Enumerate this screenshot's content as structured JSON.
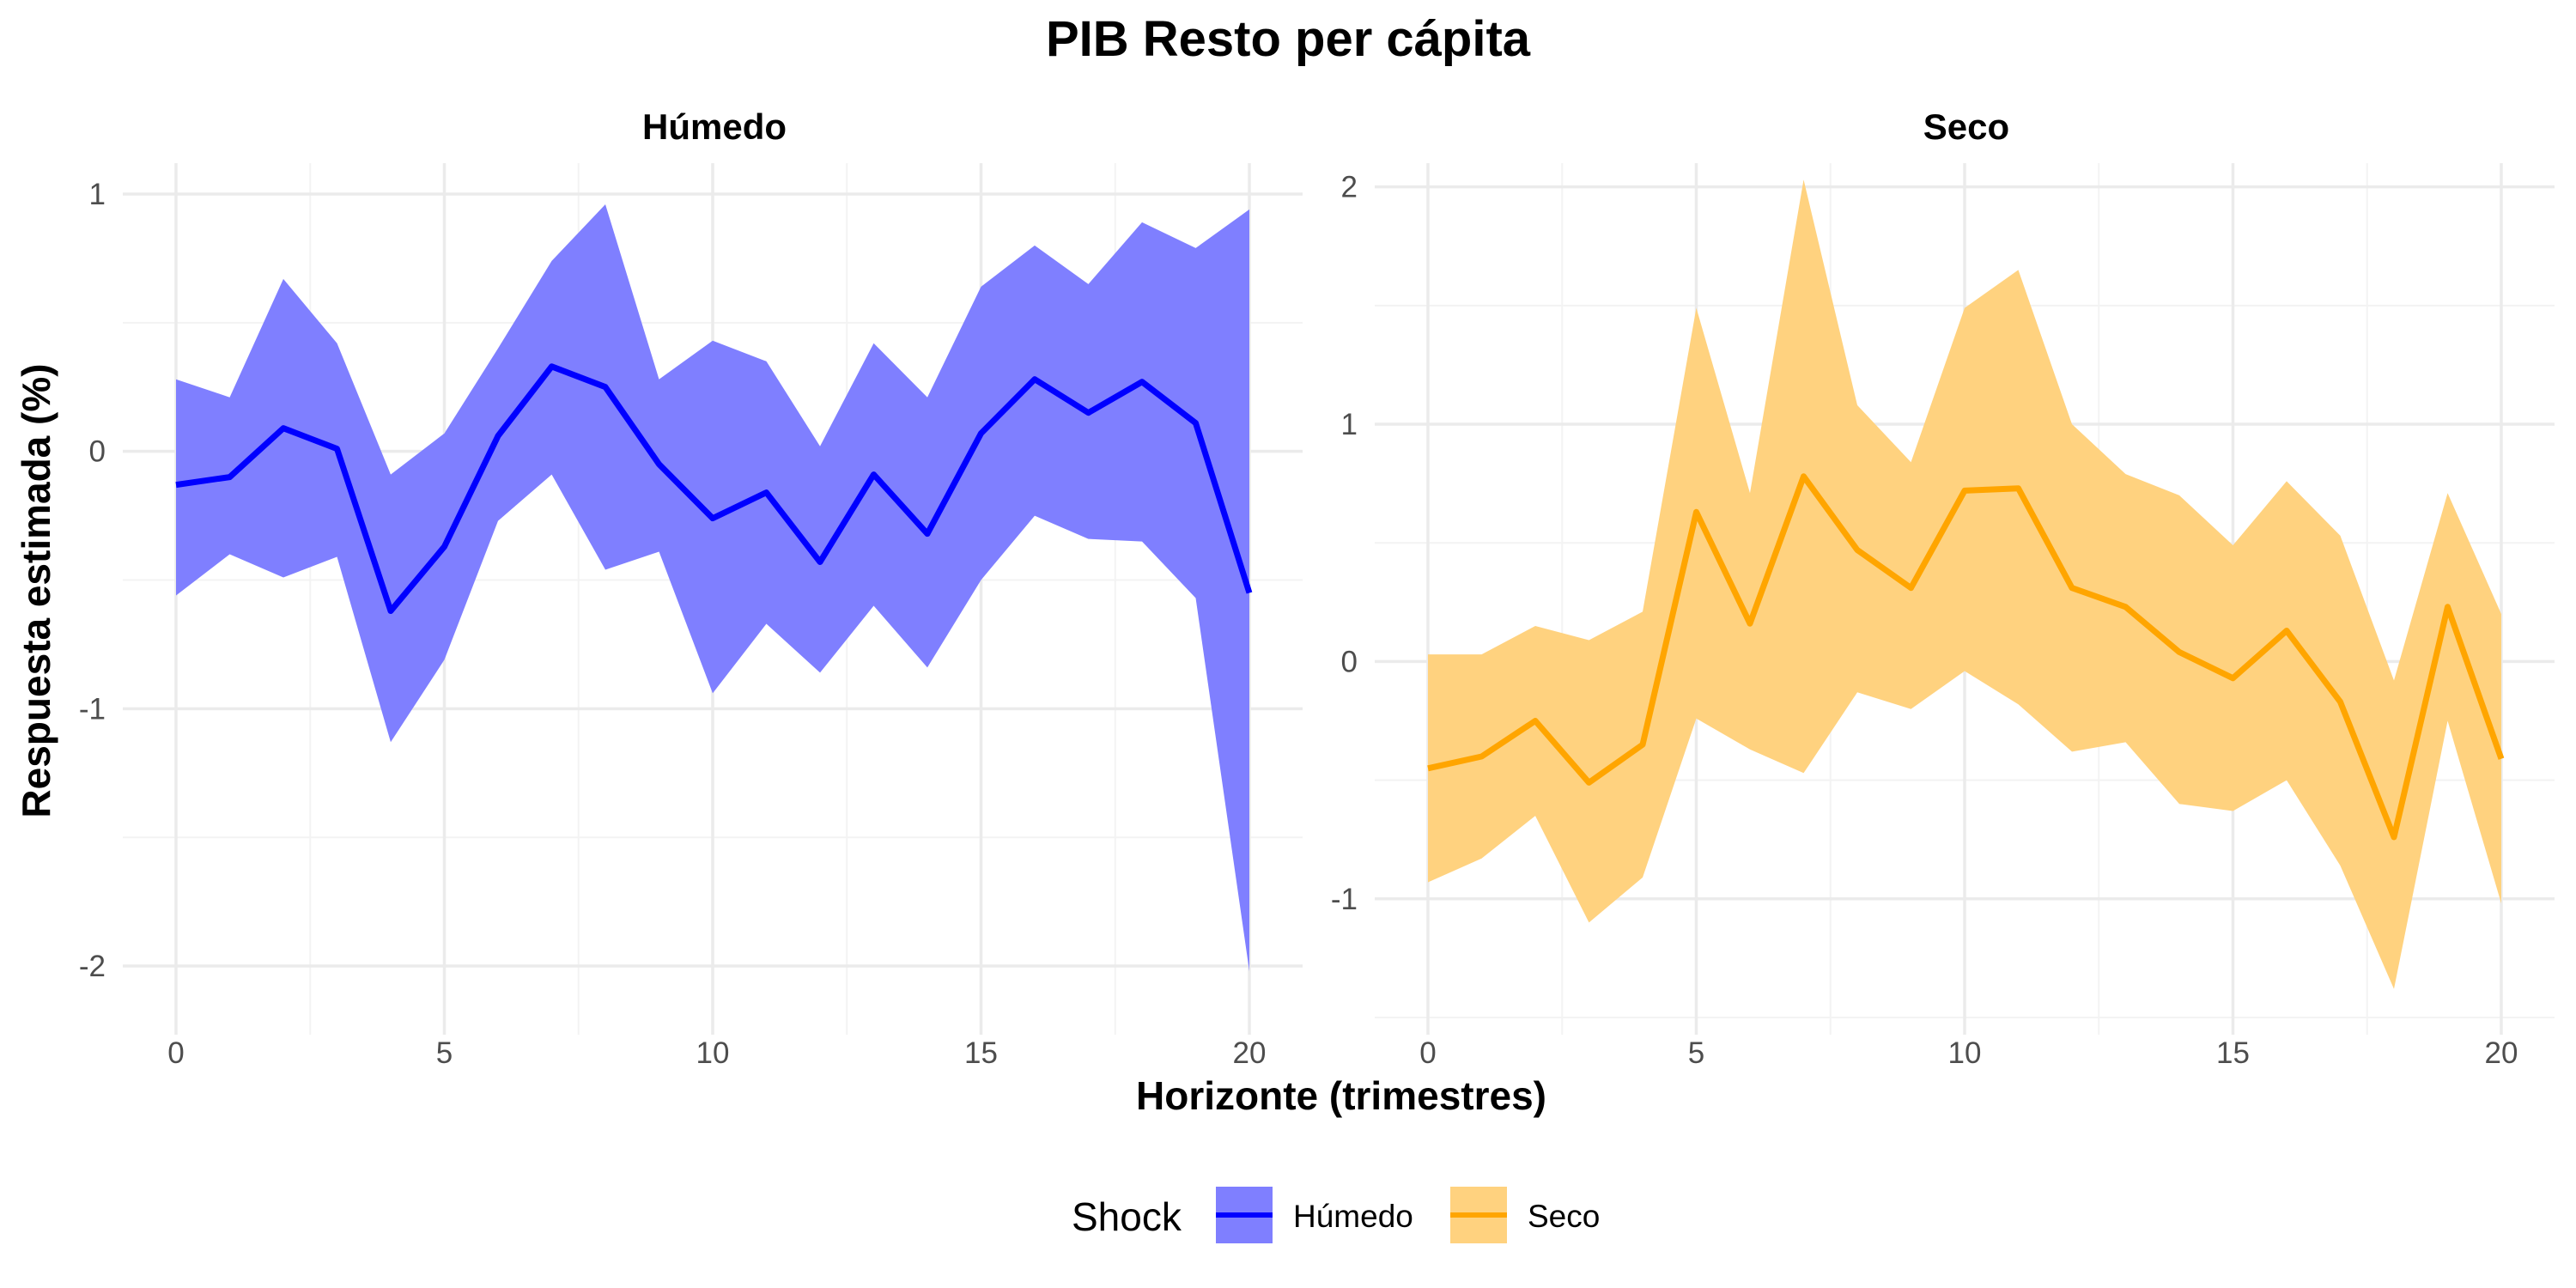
{
  "chart_data": {
    "type": "line",
    "title": "PIB Resto per cápita",
    "xlabel": "Horizonte (trimestres)",
    "ylabel": "Respuesta estimada (%)",
    "legend": {
      "title": "Shock",
      "position": "bottom",
      "items": [
        "Húmedo",
        "Seco"
      ]
    },
    "grid": true,
    "x_ticks": [
      "0",
      "5",
      "10",
      "15",
      "20"
    ],
    "panels": [
      {
        "name": "Húmedo",
        "color": "#0000ff",
        "ribbon_color": "#7f7fff",
        "xlim": [
          0,
          20
        ],
        "ylim": [
          -2.2,
          1.12
        ],
        "y_ticks": [
          "1",
          "0",
          "-1",
          "-2"
        ],
        "y_tick_values": [
          1,
          0,
          -1,
          -2
        ],
        "x": [
          0,
          1,
          2,
          3,
          4,
          5,
          6,
          7,
          8,
          9,
          10,
          11,
          12,
          13,
          14,
          15,
          16,
          17,
          18,
          19,
          20
        ],
        "estimate": [
          -0.13,
          -0.1,
          0.09,
          0.01,
          -0.62,
          -0.37,
          0.06,
          0.33,
          0.25,
          -0.05,
          -0.26,
          -0.16,
          -0.43,
          -0.09,
          -0.32,
          0.07,
          0.28,
          0.15,
          0.27,
          0.11,
          -0.55
        ],
        "upper": [
          0.28,
          0.21,
          0.67,
          0.42,
          -0.09,
          0.07,
          0.4,
          0.74,
          0.96,
          0.28,
          0.43,
          0.35,
          0.02,
          0.42,
          0.21,
          0.64,
          0.8,
          0.65,
          0.89,
          0.79,
          0.94
        ],
        "lower": [
          -0.56,
          -0.4,
          -0.49,
          -0.41,
          -1.13,
          -0.81,
          -0.27,
          -0.09,
          -0.46,
          -0.39,
          -0.94,
          -0.67,
          -0.86,
          -0.6,
          -0.84,
          -0.5,
          -0.25,
          -0.34,
          -0.35,
          -0.57,
          -2.02
        ]
      },
      {
        "name": "Seco",
        "color": "#ffa500",
        "ribbon_color": "#ffd27f",
        "xlim": [
          0,
          20
        ],
        "ylim": [
          -1.5,
          2.1
        ],
        "y_ticks": [
          "2",
          "1",
          "0",
          "-1"
        ],
        "y_tick_values": [
          2,
          1,
          0,
          -1
        ],
        "x": [
          0,
          1,
          2,
          3,
          4,
          5,
          6,
          7,
          8,
          9,
          10,
          11,
          12,
          13,
          14,
          15,
          16,
          17,
          18,
          19,
          20
        ],
        "estimate": [
          -0.45,
          -0.4,
          -0.25,
          -0.51,
          -0.35,
          0.63,
          0.16,
          0.78,
          0.47,
          0.31,
          0.72,
          0.73,
          0.31,
          0.23,
          0.04,
          -0.07,
          0.13,
          -0.17,
          -0.74,
          0.23,
          -0.41
        ],
        "upper": [
          0.03,
          0.03,
          0.15,
          0.09,
          0.21,
          1.49,
          0.71,
          2.03,
          1.08,
          0.84,
          1.49,
          1.65,
          1.0,
          0.79,
          0.7,
          0.49,
          0.76,
          0.53,
          -0.08,
          0.71,
          0.2
        ],
        "lower": [
          -0.93,
          -0.83,
          -0.65,
          -1.1,
          -0.91,
          -0.24,
          -0.37,
          -0.47,
          -0.13,
          -0.2,
          -0.04,
          -0.18,
          -0.38,
          -0.34,
          -0.6,
          -0.63,
          -0.5,
          -0.86,
          -1.38,
          -0.25,
          -1.02
        ]
      }
    ]
  }
}
